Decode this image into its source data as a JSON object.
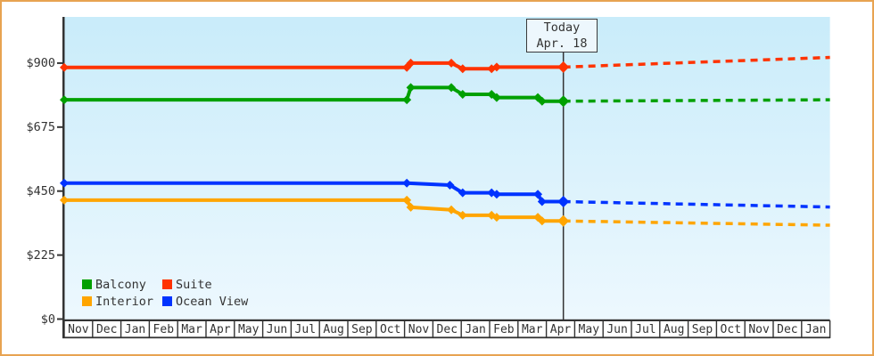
{
  "frame": {
    "border_color": "#e8a351",
    "background": "#ffffff"
  },
  "chart_data": {
    "type": "line",
    "description_of_x_unit": "month index, 0 = leftmost Nov cell, fractional = day within month",
    "today": {
      "month_index": 17.6,
      "box_line1": "Today",
      "box_line2": "Apr. 18"
    },
    "y_axis": {
      "range": [
        0,
        900
      ],
      "tick_labels": [
        "$0",
        "$225",
        "$450",
        "$675",
        "$900"
      ],
      "tick_values": [
        0,
        225,
        450,
        675,
        900
      ]
    },
    "x_axis": {
      "months": [
        "Nov",
        "Dec",
        "Jan",
        "Feb",
        "Mar",
        "Apr",
        "May",
        "Jun",
        "Jul",
        "Aug",
        "Sep",
        "Oct",
        "Nov",
        "Dec",
        "Jan",
        "Feb",
        "Mar",
        "Apr",
        "May",
        "Jun",
        "Jul",
        "Aug",
        "Sep",
        "Oct",
        "Nov",
        "Dec",
        "Jan"
      ]
    },
    "series": [
      {
        "name": "Suite",
        "color": "#ff3300",
        "points": [
          [
            0,
            885
          ],
          [
            12.08,
            885
          ],
          [
            12.22,
            900
          ],
          [
            13.65,
            900
          ],
          [
            14.05,
            880
          ],
          [
            15.07,
            880
          ],
          [
            15.25,
            886
          ],
          [
            17.6,
            886
          ]
        ],
        "forecast": [
          [
            17.6,
            886
          ],
          [
            27,
            920
          ]
        ]
      },
      {
        "name": "Balcony",
        "color": "#00a000",
        "points": [
          [
            0,
            771
          ],
          [
            12.08,
            771
          ],
          [
            12.22,
            814
          ],
          [
            13.65,
            814
          ],
          [
            14.05,
            790
          ],
          [
            15.07,
            790
          ],
          [
            15.25,
            779
          ],
          [
            16.7,
            779
          ],
          [
            16.85,
            766
          ],
          [
            17.6,
            766
          ]
        ],
        "forecast": [
          [
            17.6,
            766
          ],
          [
            27,
            771
          ]
        ]
      },
      {
        "name": "Ocean View",
        "color": "#0033ff",
        "points": [
          [
            0,
            478
          ],
          [
            12.08,
            478
          ],
          [
            13.6,
            471
          ],
          [
            14.05,
            444
          ],
          [
            15.07,
            444
          ],
          [
            15.25,
            439
          ],
          [
            16.7,
            439
          ],
          [
            16.85,
            413
          ],
          [
            17.6,
            413
          ]
        ],
        "forecast": [
          [
            17.6,
            413
          ],
          [
            27,
            394
          ]
        ]
      },
      {
        "name": "Interior",
        "color": "#ffa500",
        "points": [
          [
            0,
            418
          ],
          [
            12.08,
            418
          ],
          [
            12.22,
            393
          ],
          [
            13.65,
            384
          ],
          [
            14.05,
            365
          ],
          [
            15.07,
            365
          ],
          [
            15.25,
            358
          ],
          [
            16.7,
            358
          ],
          [
            16.85,
            345
          ],
          [
            17.6,
            345
          ]
        ],
        "forecast": [
          [
            17.6,
            345
          ],
          [
            27,
            330
          ]
        ]
      }
    ],
    "legend": {
      "items": [
        {
          "label": "Balcony",
          "color": "#00a000"
        },
        {
          "label": "Suite",
          "color": "#ff3300"
        },
        {
          "label": "Interior",
          "color": "#ffa500"
        },
        {
          "label": "Ocean View",
          "color": "#0033ff"
        }
      ]
    },
    "plot_bg": {
      "top_color": "#c9ecfa",
      "bottom_color": "#edf8fe"
    },
    "axis_color": "#333333"
  }
}
